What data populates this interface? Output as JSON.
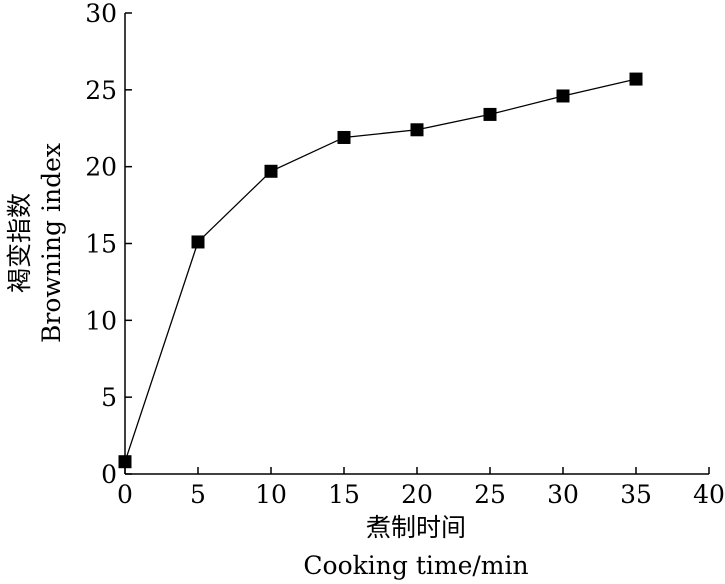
{
  "chart_data": {
    "type": "line",
    "x": [
      0,
      5,
      10,
      15,
      20,
      25,
      30,
      35
    ],
    "series": [
      {
        "values": [
          0.8,
          15.1,
          19.7,
          21.9,
          22.4,
          23.4,
          24.6,
          25.7
        ]
      }
    ],
    "xlabel_cn": "煮制时间",
    "xlabel_en": "Cooking time/min",
    "ylabel_cn": "褐变指数",
    "ylabel_en": "Browning index",
    "xlim": [
      0,
      40
    ],
    "ylim": [
      0,
      30
    ],
    "xticks": [
      0,
      5,
      10,
      15,
      20,
      25,
      30,
      35,
      40
    ],
    "yticks": [
      0,
      5,
      10,
      15,
      20,
      25,
      30
    ],
    "marker": "square",
    "grid": false,
    "legend": "none"
  }
}
